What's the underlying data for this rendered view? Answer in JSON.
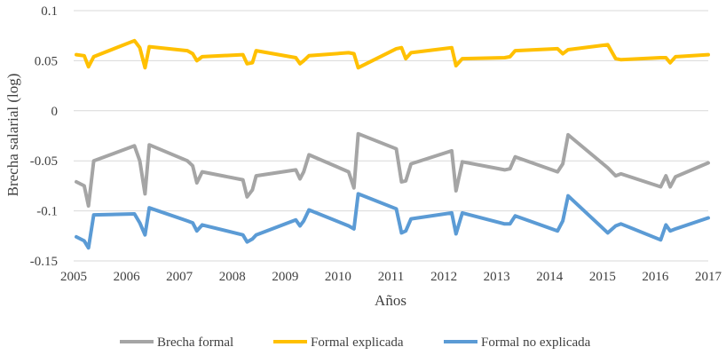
{
  "chart_data": {
    "type": "line",
    "title": "",
    "xlabel": "Años",
    "ylabel": "Brecha salarial (log)",
    "xlim": [
      2005,
      2017
    ],
    "ylim": [
      -0.15,
      0.1
    ],
    "x_ticks": [
      2005,
      2006,
      2007,
      2008,
      2009,
      2010,
      2011,
      2012,
      2013,
      2014,
      2015,
      2016,
      2017
    ],
    "x_tick_labels": [
      "2005",
      "2006",
      "2007",
      "2008",
      "2009",
      "2010",
      "2011",
      "2012",
      "2013",
      "2014",
      "2015",
      "2016",
      "2017"
    ],
    "y_ticks": [
      0.1,
      0.05,
      0,
      -0.05,
      -0.1,
      -0.15
    ],
    "y_tick_labels": [
      "0.1",
      "0.05",
      "0",
      "-0.05",
      "-0.1",
      "-0.15"
    ],
    "grid": true,
    "legend_position": "bottom",
    "series": [
      {
        "name": "Brecha formal",
        "color": "#a5a5a5",
        "x": [
          2005.05,
          2005.2,
          2005.28,
          2005.38,
          2006.15,
          2006.25,
          2006.35,
          2006.43,
          2007.15,
          2007.25,
          2007.33,
          2007.43,
          2008.2,
          2008.28,
          2008.38,
          2008.45,
          2009.2,
          2009.28,
          2009.35,
          2009.45,
          2010.2,
          2010.3,
          2010.38,
          2011.1,
          2011.2,
          2011.28,
          2011.38,
          2012.15,
          2012.23,
          2012.35,
          2013.15,
          2013.25,
          2013.35,
          2014.15,
          2014.25,
          2014.35,
          2015.1,
          2015.25,
          2015.35,
          2016.1,
          2016.2,
          2016.28,
          2016.38,
          2017.0
        ],
        "values": [
          -0.071,
          -0.075,
          -0.095,
          -0.05,
          -0.035,
          -0.05,
          -0.083,
          -0.034,
          -0.05,
          -0.055,
          -0.072,
          -0.061,
          -0.069,
          -0.086,
          -0.079,
          -0.065,
          -0.059,
          -0.068,
          -0.061,
          -0.044,
          -0.061,
          -0.077,
          -0.023,
          -0.038,
          -0.071,
          -0.07,
          -0.053,
          -0.04,
          -0.08,
          -0.051,
          -0.059,
          -0.058,
          -0.046,
          -0.061,
          -0.053,
          -0.024,
          -0.057,
          -0.065,
          -0.063,
          -0.076,
          -0.065,
          -0.076,
          -0.066,
          -0.052
        ]
      },
      {
        "name": "Formal explicada",
        "color": "#ffc000",
        "x": [
          2005.05,
          2005.2,
          2005.28,
          2005.38,
          2006.15,
          2006.25,
          2006.35,
          2006.43,
          2007.15,
          2007.25,
          2007.33,
          2007.43,
          2008.2,
          2008.28,
          2008.38,
          2008.45,
          2009.2,
          2009.28,
          2009.35,
          2009.45,
          2010.2,
          2010.3,
          2010.38,
          2011.1,
          2011.2,
          2011.28,
          2011.38,
          2012.15,
          2012.23,
          2012.35,
          2013.15,
          2013.25,
          2013.35,
          2014.15,
          2014.25,
          2014.35,
          2015.1,
          2015.25,
          2015.35,
          2016.1,
          2016.2,
          2016.28,
          2016.38,
          2017.0
        ],
        "values": [
          0.056,
          0.055,
          0.044,
          0.054,
          0.07,
          0.063,
          0.043,
          0.064,
          0.06,
          0.057,
          0.05,
          0.054,
          0.056,
          0.047,
          0.048,
          0.06,
          0.053,
          0.047,
          0.05,
          0.055,
          0.058,
          0.057,
          0.043,
          0.062,
          0.063,
          0.052,
          0.058,
          0.063,
          0.045,
          0.052,
          0.053,
          0.054,
          0.06,
          0.062,
          0.057,
          0.061,
          0.066,
          0.052,
          0.051,
          0.053,
          0.053,
          0.048,
          0.054,
          0.056
        ]
      },
      {
        "name": "Formal no explicada",
        "color": "#5b9bd5",
        "x": [
          2005.05,
          2005.2,
          2005.28,
          2005.38,
          2006.15,
          2006.25,
          2006.35,
          2006.43,
          2007.15,
          2007.25,
          2007.33,
          2007.43,
          2008.2,
          2008.28,
          2008.38,
          2008.45,
          2009.2,
          2009.28,
          2009.35,
          2009.45,
          2010.2,
          2010.3,
          2010.38,
          2011.1,
          2011.2,
          2011.28,
          2011.38,
          2012.15,
          2012.23,
          2012.35,
          2013.15,
          2013.25,
          2013.35,
          2014.15,
          2014.25,
          2014.35,
          2015.1,
          2015.25,
          2015.35,
          2016.1,
          2016.2,
          2016.28,
          2016.38,
          2017.0
        ],
        "values": [
          -0.126,
          -0.13,
          -0.137,
          -0.104,
          -0.103,
          -0.112,
          -0.124,
          -0.097,
          -0.11,
          -0.112,
          -0.12,
          -0.114,
          -0.124,
          -0.131,
          -0.128,
          -0.124,
          -0.109,
          -0.115,
          -0.11,
          -0.099,
          -0.115,
          -0.118,
          -0.083,
          -0.098,
          -0.122,
          -0.12,
          -0.108,
          -0.102,
          -0.123,
          -0.102,
          -0.113,
          -0.113,
          -0.105,
          -0.12,
          -0.11,
          -0.085,
          -0.122,
          -0.115,
          -0.113,
          -0.129,
          -0.114,
          -0.12,
          -0.118,
          -0.107
        ]
      }
    ]
  }
}
